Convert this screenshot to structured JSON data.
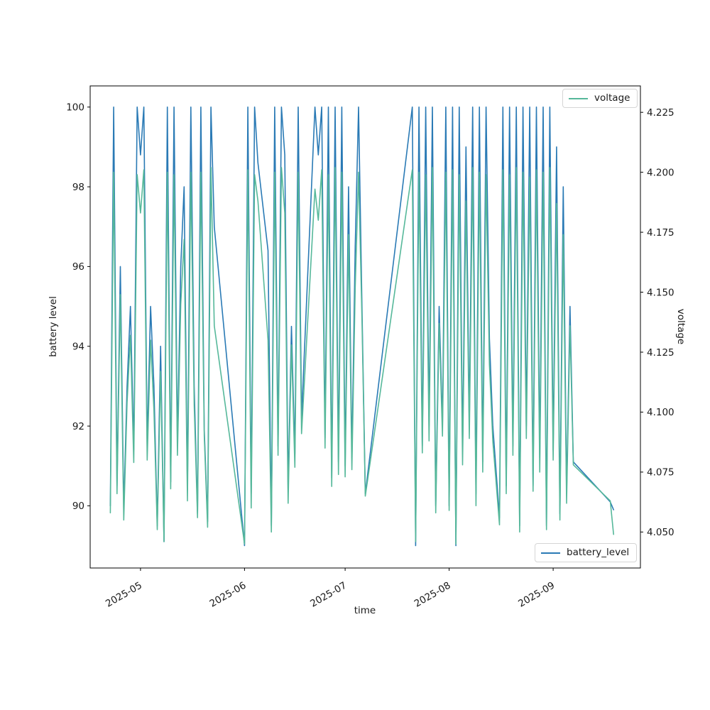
{
  "figure": {
    "background": "#ffffff"
  },
  "chart_data": {
    "type": "line",
    "title": "",
    "xlabel": "time",
    "ylabel_left": "battery level",
    "ylabel_right": "voltage",
    "grid": false,
    "legend_positions": {
      "voltage": "upper right",
      "battery_level": "lower right"
    },
    "xlim": [
      "2025-04-16",
      "2025-09-27"
    ],
    "ylim_left": [
      88.44,
      100.53
    ],
    "ylim_right": [
      4.035,
      4.236
    ],
    "left_ticks": [
      90,
      92,
      94,
      96,
      98,
      100
    ],
    "right_ticks": [
      4.05,
      4.075,
      4.1,
      4.125,
      4.15,
      4.175,
      4.2,
      4.225
    ],
    "right_tick_labels": [
      "4.050",
      "4.075",
      "4.100",
      "4.125",
      "4.150",
      "4.175",
      "4.200",
      "4.225"
    ],
    "x_ticks": [
      {
        "label": "2025-05",
        "date": "2025-05-01"
      },
      {
        "label": "2025-06",
        "date": "2025-06-01"
      },
      {
        "label": "2025-07",
        "date": "2025-07-01"
      },
      {
        "label": "2025-08",
        "date": "2025-08-01"
      },
      {
        "label": "2025-09",
        "date": "2025-09-01"
      }
    ],
    "x": [
      "2025-04-22",
      "2025-04-23",
      "2025-04-24",
      "2025-04-25",
      "2025-04-26",
      "2025-04-27",
      "2025-04-28",
      "2025-04-29",
      "2025-04-30",
      "2025-05-01",
      "2025-05-02",
      "2025-05-03",
      "2025-05-04",
      "2025-05-05",
      "2025-05-06",
      "2025-05-07",
      "2025-05-08",
      "2025-05-09",
      "2025-05-10",
      "2025-05-11",
      "2025-05-12",
      "2025-05-13",
      "2025-05-14",
      "2025-05-15",
      "2025-05-16",
      "2025-05-17",
      "2025-05-18",
      "2025-05-19",
      "2025-05-20",
      "2025-05-21",
      "2025-05-22",
      "2025-05-23",
      "2025-06-01",
      "2025-06-02",
      "2025-06-03",
      "2025-06-04",
      "2025-06-05",
      "2025-06-08",
      "2025-06-09",
      "2025-06-10",
      "2025-06-11",
      "2025-06-12",
      "2025-06-13",
      "2025-06-14",
      "2025-06-15",
      "2025-06-16",
      "2025-06-17",
      "2025-06-18",
      "2025-06-22",
      "2025-06-23",
      "2025-06-24",
      "2025-06-25",
      "2025-06-26",
      "2025-06-27",
      "2025-06-28",
      "2025-06-29",
      "2025-06-30",
      "2025-07-01",
      "2025-07-02",
      "2025-07-03",
      "2025-07-04",
      "2025-07-05",
      "2025-07-06",
      "2025-07-07",
      "2025-07-21",
      "2025-07-22",
      "2025-07-23",
      "2025-07-24",
      "2025-07-25",
      "2025-07-26",
      "2025-07-27",
      "2025-07-28",
      "2025-07-29",
      "2025-07-30",
      "2025-07-31",
      "2025-08-01",
      "2025-08-02",
      "2025-08-03",
      "2025-08-04",
      "2025-08-05",
      "2025-08-06",
      "2025-08-07",
      "2025-08-08",
      "2025-08-09",
      "2025-08-10",
      "2025-08-11",
      "2025-08-12",
      "2025-08-13",
      "2025-08-14",
      "2025-08-16",
      "2025-08-17",
      "2025-08-18",
      "2025-08-19",
      "2025-08-20",
      "2025-08-21",
      "2025-08-22",
      "2025-08-23",
      "2025-08-24",
      "2025-08-25",
      "2025-08-26",
      "2025-08-27",
      "2025-08-28",
      "2025-08-29",
      "2025-08-30",
      "2025-08-31",
      "2025-09-01",
      "2025-09-02",
      "2025-09-03",
      "2025-09-04",
      "2025-09-05",
      "2025-09-06",
      "2025-09-07",
      "2025-09-18",
      "2025-09-19"
    ],
    "series": [
      {
        "name": "battery_level",
        "axis": "left",
        "color": "#2a7ab5",
        "values": [
          90.0,
          100,
          90.5,
          96,
          89.9,
          93,
          95,
          91.4,
          100,
          98.8,
          100,
          91.5,
          95,
          93,
          89.5,
          94,
          89.1,
          100,
          90.6,
          100,
          91.6,
          96,
          98,
          90.4,
          100,
          93,
          89.8,
          100,
          91.9,
          89.6,
          100,
          97,
          89.0,
          100,
          90.3,
          100,
          98.6,
          96.4,
          89.5,
          100,
          91.5,
          100,
          98.8,
          90.4,
          94.5,
          91.3,
          100,
          92.2,
          100,
          98.8,
          100,
          91.7,
          100,
          90.7,
          100,
          91.1,
          100,
          91.0,
          98,
          91.2,
          96.5,
          100,
          95,
          90.3,
          100,
          89.0,
          100,
          91.5,
          100,
          92.0,
          100,
          90.0,
          95,
          92.0,
          100,
          90.0,
          100,
          89.0,
          100,
          91.3,
          99,
          92.0,
          100,
          90.3,
          100,
          91.1,
          100,
          94.2,
          92.0,
          89.7,
          100,
          90.5,
          100,
          91.5,
          100,
          89.5,
          100,
          92.0,
          100,
          90.5,
          100,
          91.2,
          100,
          89.5,
          100,
          91.4,
          99,
          89.8,
          98,
          90.3,
          95,
          91.1,
          90.1,
          89.9
        ]
      },
      {
        "name": "voltage",
        "axis": "right",
        "color": "#56b89a",
        "values": [
          4.058,
          4.2,
          4.066,
          4.149,
          4.055,
          4.104,
          4.132,
          4.079,
          4.199,
          4.183,
          4.201,
          4.08,
          4.13,
          4.101,
          4.051,
          4.117,
          4.046,
          4.2,
          4.068,
          4.199,
          4.082,
          4.145,
          4.172,
          4.063,
          4.2,
          4.103,
          4.056,
          4.2,
          4.09,
          4.052,
          4.202,
          4.136,
          4.045,
          4.201,
          4.06,
          4.199,
          4.188,
          4.13,
          4.05,
          4.2,
          4.082,
          4.202,
          4.183,
          4.062,
          4.128,
          4.077,
          4.2,
          4.091,
          4.193,
          4.18,
          4.201,
          4.085,
          4.199,
          4.069,
          4.202,
          4.074,
          4.2,
          4.073,
          4.174,
          4.076,
          4.152,
          4.2,
          4.139,
          4.065,
          4.201,
          4.046,
          4.2,
          4.083,
          4.199,
          4.088,
          4.202,
          4.058,
          4.137,
          4.09,
          4.2,
          4.059,
          4.201,
          4.045,
          4.199,
          4.078,
          4.188,
          4.089,
          4.202,
          4.061,
          4.2,
          4.075,
          4.199,
          4.12,
          4.088,
          4.053,
          4.201,
          4.066,
          4.199,
          4.082,
          4.202,
          4.05,
          4.2,
          4.089,
          4.198,
          4.067,
          4.201,
          4.075,
          4.2,
          4.051,
          4.202,
          4.08,
          4.187,
          4.055,
          4.174,
          4.062,
          4.136,
          4.078,
          4.063,
          4.049
        ]
      }
    ]
  }
}
